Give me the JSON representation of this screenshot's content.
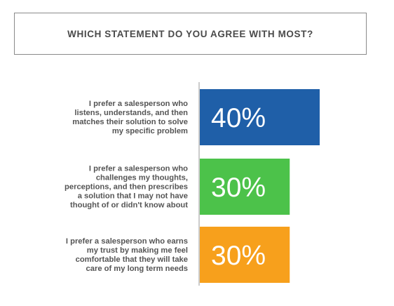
{
  "chart_data": {
    "type": "bar",
    "orientation": "horizontal",
    "title": "WHICH STATEMENT DO YOU AGREE WITH MOST?",
    "categories": [
      [
        "I prefer a salesperson who",
        "listens, understands, and then",
        "matches their solution to solve",
        "my specific problem"
      ],
      [
        "I prefer a salesperson who",
        "challenges my thoughts,",
        "perceptions, and then prescribes",
        "a solution that I may not have",
        "thought of or didn't know about"
      ],
      [
        "I prefer a salesperson who earns",
        "my trust by making me feel",
        "comfortable that they will take",
        "care of my long term needs"
      ]
    ],
    "values": [
      40,
      30,
      30
    ],
    "value_labels": [
      "40%",
      "30%",
      "30%"
    ],
    "colors": [
      "#1f5fa8",
      "#4cc24a",
      "#f7a01c"
    ],
    "xlim": [
      0,
      40
    ],
    "grid": false,
    "legend": "none"
  }
}
